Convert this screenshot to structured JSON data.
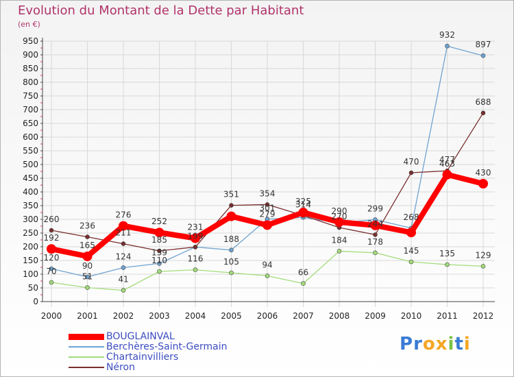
{
  "title": "Evolution du Montant de la Dette par Habitant",
  "subtitle": "(en €)",
  "logo": {
    "text": "Proxiti",
    "letters": [
      "P",
      "r",
      "o",
      "x",
      "i",
      "t",
      "i"
    ],
    "colors": [
      "#3a7bd5",
      "#3a7bd5",
      "#f5a623",
      "#f5a623",
      "#7ac143",
      "#3a7bd5",
      "#f5a623"
    ]
  },
  "chart_data": {
    "type": "line",
    "title": "Evolution du Montant de la Dette par Habitant",
    "ylabel": "(en €)",
    "xlabel": "",
    "ylim": [
      0,
      950
    ],
    "y_ticks": [
      0,
      50,
      100,
      150,
      200,
      250,
      300,
      350,
      400,
      450,
      500,
      550,
      600,
      650,
      700,
      750,
      800,
      850,
      900,
      950
    ],
    "categories": [
      "2000",
      "2001",
      "2002",
      "2003",
      "2004",
      "2005",
      "2006",
      "2007",
      "2008",
      "2009",
      "2010",
      "2011",
      "2012"
    ],
    "grid": true,
    "legend_position": "bottom-left",
    "series": [
      {
        "name": "BOUGLAINVAL",
        "color": "#ff0000",
        "values": [
          192,
          165,
          276,
          252,
          231,
          311,
          279,
          325,
          290,
          278,
          252,
          463,
          430
        ],
        "labels": [
          "192",
          "165",
          "276",
          "252",
          "231",
          "",
          "279",
          "325",
          "290",
          "",
          "",
          "463",
          "430"
        ]
      },
      {
        "name": "Berchères-Saint-Germain",
        "color": "#6fa3d2",
        "values": [
          120,
          90,
          124,
          139,
          199,
          188,
          301,
          307,
          287,
          299,
          268,
          932,
          897
        ],
        "labels": [
          "120",
          "90",
          "124",
          "139",
          "",
          "188",
          "301",
          "",
          "",
          "299",
          "268",
          "932",
          "897"
        ]
      },
      {
        "name": "Chartainvilliers",
        "color": "#a3dc7a",
        "values": [
          70,
          51,
          41,
          110,
          116,
          105,
          94,
          66,
          184,
          178,
          145,
          135,
          129
        ],
        "labels": [
          "70",
          "51",
          "41",
          "110",
          "116",
          "105",
          "94",
          "66",
          "184",
          "178",
          "145",
          "135",
          "129"
        ]
      },
      {
        "name": "Néron",
        "color": "#7a2e2e",
        "values": [
          260,
          236,
          211,
          185,
          199,
          351,
          354,
          314,
          270,
          244,
          470,
          477,
          688
        ],
        "labels": [
          "260",
          "236",
          "211",
          "185",
          "199",
          "351",
          "354",
          "314",
          "270",
          "244",
          "470",
          "477",
          "688"
        ]
      }
    ]
  }
}
